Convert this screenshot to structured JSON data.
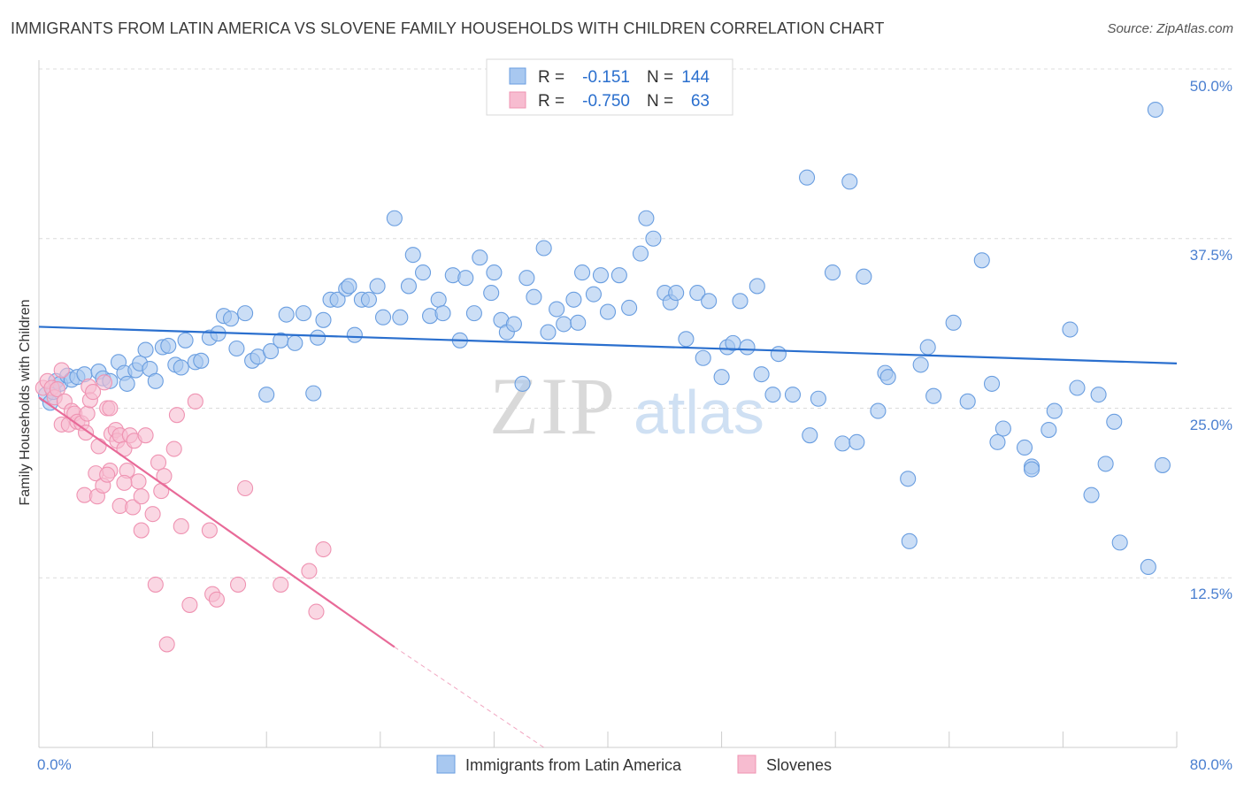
{
  "title": "IMMIGRANTS FROM LATIN AMERICA VS SLOVENE FAMILY HOUSEHOLDS WITH CHILDREN CORRELATION CHART",
  "source": "Source: ZipAtlas.com",
  "watermark": {
    "zip": "ZIP",
    "atlas": "atlas"
  },
  "colors": {
    "blue_fill": "#a8c8f0",
    "blue_stroke": "#6a9ee0",
    "blue_line": "#2a6fce",
    "pink_fill": "#f7bcd0",
    "pink_stroke": "#ef93b2",
    "pink_line": "#e86a98",
    "axis_text": "#4a7fd0",
    "grid": "#dcdcdc"
  },
  "legend": {
    "rows": [
      {
        "r_label": "R =",
        "r_value": "-0.151",
        "n_label": "N =",
        "n_value": "144"
      },
      {
        "r_label": "R =",
        "r_value": "-0.750",
        "n_label": "N =",
        "n_value": "63"
      }
    ]
  },
  "chart_data": {
    "type": "scatter",
    "title": "IMMIGRANTS FROM LATIN AMERICA VS SLOVENE FAMILY HOUSEHOLDS WITH CHILDREN CORRELATION CHART",
    "xlabel": "",
    "ylabel": "Family Households with Children",
    "xlim": [
      0,
      80
    ],
    "ylim": [
      0,
      50
    ],
    "x_tick_labels": [
      "0.0%",
      "80.0%"
    ],
    "y_ticks": [
      12.5,
      25.0,
      37.5,
      50.0
    ],
    "y_tick_labels": [
      "12.5%",
      "25.0%",
      "37.5%",
      "50.0%"
    ],
    "grid": true,
    "legend_position": "top-center",
    "series": [
      {
        "name": "Immigrants from Latin America",
        "color": "#a8c8f0",
        "trend": {
          "x": [
            0,
            80
          ],
          "y": [
            31.0,
            28.3
          ]
        },
        "points": [
          [
            0.5,
            26.0
          ],
          [
            0.8,
            25.4
          ],
          [
            1.0,
            26.2
          ],
          [
            1.2,
            27.0
          ],
          [
            1.5,
            26.8
          ],
          [
            2.0,
            27.4
          ],
          [
            2.3,
            27.1
          ],
          [
            2.7,
            27.3
          ],
          [
            3.2,
            27.5
          ],
          [
            4.2,
            27.7
          ],
          [
            4.5,
            27.2
          ],
          [
            5.0,
            27.0
          ],
          [
            5.6,
            28.4
          ],
          [
            6.0,
            27.6
          ],
          [
            6.2,
            26.8
          ],
          [
            6.8,
            27.8
          ],
          [
            7.1,
            28.3
          ],
          [
            7.5,
            29.3
          ],
          [
            7.8,
            27.9
          ],
          [
            8.2,
            27.0
          ],
          [
            8.7,
            29.5
          ],
          [
            9.1,
            29.6
          ],
          [
            9.6,
            28.2
          ],
          [
            10.0,
            28.0
          ],
          [
            10.3,
            30.0
          ],
          [
            11.0,
            28.4
          ],
          [
            11.4,
            28.5
          ],
          [
            12.0,
            30.2
          ],
          [
            12.6,
            30.5
          ],
          [
            13.0,
            31.8
          ],
          [
            13.5,
            31.6
          ],
          [
            13.9,
            29.4
          ],
          [
            14.5,
            32.0
          ],
          [
            15.0,
            28.5
          ],
          [
            15.4,
            28.8
          ],
          [
            16.0,
            26.0
          ],
          [
            16.3,
            29.2
          ],
          [
            17.0,
            30.0
          ],
          [
            17.4,
            31.9
          ],
          [
            18.0,
            29.8
          ],
          [
            18.6,
            32.0
          ],
          [
            19.3,
            26.1
          ],
          [
            19.6,
            30.2
          ],
          [
            20.0,
            31.5
          ],
          [
            20.5,
            33.0
          ],
          [
            21.0,
            33.0
          ],
          [
            21.6,
            33.8
          ],
          [
            21.8,
            34.0
          ],
          [
            22.2,
            30.4
          ],
          [
            22.7,
            33.0
          ],
          [
            23.2,
            33.0
          ],
          [
            23.8,
            34.0
          ],
          [
            24.2,
            31.7
          ],
          [
            25.0,
            39.0
          ],
          [
            25.4,
            31.7
          ],
          [
            26.0,
            34.0
          ],
          [
            26.3,
            36.3
          ],
          [
            27.0,
            35.0
          ],
          [
            27.5,
            31.8
          ],
          [
            28.1,
            33.0
          ],
          [
            28.4,
            32.0
          ],
          [
            29.1,
            34.8
          ],
          [
            29.6,
            30.0
          ],
          [
            30.0,
            34.6
          ],
          [
            30.6,
            32.0
          ],
          [
            31.0,
            36.1
          ],
          [
            31.8,
            33.5
          ],
          [
            32.0,
            35.0
          ],
          [
            32.5,
            31.5
          ],
          [
            32.9,
            30.6
          ],
          [
            33.4,
            31.2
          ],
          [
            34.0,
            26.8
          ],
          [
            34.3,
            34.6
          ],
          [
            34.8,
            33.2
          ],
          [
            35.5,
            36.8
          ],
          [
            35.8,
            30.6
          ],
          [
            36.4,
            32.3
          ],
          [
            36.9,
            31.2
          ],
          [
            37.6,
            33.0
          ],
          [
            37.9,
            31.3
          ],
          [
            38.2,
            35.0
          ],
          [
            39.0,
            33.4
          ],
          [
            39.5,
            34.8
          ],
          [
            40.0,
            32.1
          ],
          [
            40.8,
            34.8
          ],
          [
            41.5,
            32.4
          ],
          [
            42.3,
            36.4
          ],
          [
            42.7,
            39.0
          ],
          [
            43.2,
            37.5
          ],
          [
            44.0,
            33.5
          ],
          [
            44.4,
            32.8
          ],
          [
            44.8,
            33.5
          ],
          [
            45.5,
            30.1
          ],
          [
            46.3,
            33.5
          ],
          [
            46.7,
            28.7
          ],
          [
            47.1,
            32.9
          ],
          [
            48.0,
            27.3
          ],
          [
            48.4,
            29.5
          ],
          [
            48.8,
            29.8
          ],
          [
            49.3,
            32.9
          ],
          [
            49.8,
            29.5
          ],
          [
            50.5,
            34.0
          ],
          [
            50.8,
            27.5
          ],
          [
            51.6,
            26.0
          ],
          [
            52.0,
            29.0
          ],
          [
            53.0,
            26.0
          ],
          [
            54.0,
            42.0
          ],
          [
            54.2,
            23.0
          ],
          [
            54.8,
            25.7
          ],
          [
            55.8,
            35.0
          ],
          [
            56.5,
            22.4
          ],
          [
            57.0,
            41.7
          ],
          [
            57.5,
            22.5
          ],
          [
            58.0,
            34.7
          ],
          [
            59.0,
            24.8
          ],
          [
            59.5,
            27.6
          ],
          [
            59.7,
            27.3
          ],
          [
            61.1,
            19.8
          ],
          [
            62.0,
            28.2
          ],
          [
            62.5,
            29.5
          ],
          [
            62.9,
            25.9
          ],
          [
            64.3,
            31.3
          ],
          [
            65.3,
            25.5
          ],
          [
            66.3,
            35.9
          ],
          [
            67.0,
            26.8
          ],
          [
            67.4,
            22.5
          ],
          [
            67.8,
            23.5
          ],
          [
            69.3,
            22.1
          ],
          [
            69.8,
            20.7
          ],
          [
            71.0,
            23.4
          ],
          [
            71.4,
            24.8
          ],
          [
            72.5,
            30.8
          ],
          [
            73.0,
            26.5
          ],
          [
            74.0,
            18.6
          ],
          [
            74.5,
            26.0
          ],
          [
            75.0,
            20.9
          ],
          [
            75.6,
            24.0
          ],
          [
            76.0,
            15.1
          ],
          [
            79.0,
            20.8
          ],
          [
            78.0,
            13.3
          ],
          [
            78.5,
            47.0
          ],
          [
            61.2,
            15.2
          ],
          [
            69.8,
            20.5
          ]
        ]
      },
      {
        "name": "Slovenes",
        "color": "#f7bcd0",
        "trend": {
          "x": [
            0,
            25
          ],
          "y": [
            25.8,
            7.4
          ]
        },
        "trend_dashed": {
          "x": [
            25,
            35.5
          ],
          "y": [
            7.4,
            0.0
          ]
        },
        "points": [
          [
            0.3,
            26.5
          ],
          [
            0.6,
            27.0
          ],
          [
            0.9,
            26.5
          ],
          [
            1.1,
            25.8
          ],
          [
            1.3,
            26.4
          ],
          [
            1.6,
            23.8
          ],
          [
            1.6,
            27.8
          ],
          [
            1.8,
            25.5
          ],
          [
            2.1,
            23.8
          ],
          [
            2.3,
            24.8
          ],
          [
            2.5,
            24.6
          ],
          [
            2.7,
            24.0
          ],
          [
            3.0,
            23.9
          ],
          [
            3.2,
            18.6
          ],
          [
            3.3,
            23.2
          ],
          [
            3.4,
            24.6
          ],
          [
            3.5,
            26.6
          ],
          [
            3.6,
            25.6
          ],
          [
            4.0,
            20.2
          ],
          [
            4.1,
            18.5
          ],
          [
            4.2,
            22.2
          ],
          [
            4.5,
            19.3
          ],
          [
            4.6,
            26.9
          ],
          [
            4.8,
            25.0
          ],
          [
            5.0,
            20.4
          ],
          [
            5.1,
            23.1
          ],
          [
            5.4,
            23.4
          ],
          [
            5.5,
            22.6
          ],
          [
            5.7,
            17.8
          ],
          [
            5.7,
            23.0
          ],
          [
            6.0,
            22.0
          ],
          [
            6.2,
            20.4
          ],
          [
            6.4,
            23.0
          ],
          [
            6.6,
            17.7
          ],
          [
            6.7,
            22.6
          ],
          [
            7.0,
            19.6
          ],
          [
            7.2,
            18.5
          ],
          [
            7.5,
            23.0
          ],
          [
            7.2,
            16.0
          ],
          [
            8.0,
            17.2
          ],
          [
            8.2,
            12.0
          ],
          [
            8.4,
            21.0
          ],
          [
            8.6,
            18.9
          ],
          [
            8.8,
            20.0
          ],
          [
            9.0,
            7.6
          ],
          [
            9.5,
            22.0
          ],
          [
            9.7,
            24.5
          ],
          [
            10.0,
            16.3
          ],
          [
            10.6,
            10.5
          ],
          [
            11.0,
            25.5
          ],
          [
            12.0,
            16.0
          ],
          [
            12.2,
            11.3
          ],
          [
            12.5,
            10.9
          ],
          [
            14.0,
            12.0
          ],
          [
            14.5,
            19.1
          ],
          [
            17.0,
            12.0
          ],
          [
            19.0,
            13.0
          ],
          [
            19.5,
            10.0
          ],
          [
            20.0,
            14.6
          ],
          [
            6.0,
            19.5
          ],
          [
            5.0,
            25.0
          ],
          [
            4.8,
            20.1
          ],
          [
            3.8,
            26.2
          ]
        ]
      }
    ]
  }
}
